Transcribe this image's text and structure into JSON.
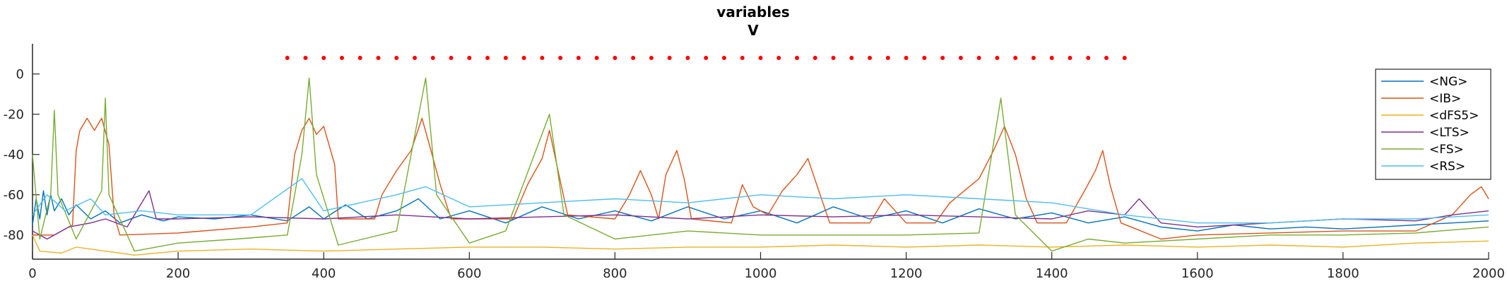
{
  "chart_data": {
    "type": "line",
    "title_lines": [
      "variables",
      "V"
    ],
    "xlim": [
      0,
      2000
    ],
    "ylim": [
      -92,
      15
    ],
    "x_ticks": [
      0,
      200,
      400,
      600,
      800,
      1000,
      1200,
      1400,
      1600,
      1800,
      2000
    ],
    "y_ticks": [
      0,
      -20,
      -40,
      -60,
      -80
    ],
    "x_tick_labels": [
      "0",
      "200",
      "400",
      "600",
      "800",
      "1000",
      "1200",
      "1400",
      "1600",
      "1800",
      "2000"
    ],
    "y_tick_labels": [
      "0",
      "-20",
      "-40",
      "-60",
      "-80"
    ],
    "legend_position": "top-right",
    "series": [
      {
        "name": "<NG>",
        "color": "#0072BD",
        "points": [
          [
            0,
            -75
          ],
          [
            5,
            -62
          ],
          [
            10,
            -72
          ],
          [
            15,
            -58
          ],
          [
            20,
            -70
          ],
          [
            25,
            -60
          ],
          [
            30,
            -68
          ],
          [
            40,
            -62
          ],
          [
            50,
            -70
          ],
          [
            60,
            -65
          ],
          [
            80,
            -72
          ],
          [
            100,
            -68
          ],
          [
            120,
            -74
          ],
          [
            150,
            -70
          ],
          [
            180,
            -73
          ],
          [
            200,
            -71
          ],
          [
            250,
            -72
          ],
          [
            300,
            -70
          ],
          [
            350,
            -73
          ],
          [
            380,
            -66
          ],
          [
            400,
            -72
          ],
          [
            430,
            -65
          ],
          [
            460,
            -72
          ],
          [
            500,
            -68
          ],
          [
            530,
            -62
          ],
          [
            560,
            -72
          ],
          [
            600,
            -68
          ],
          [
            650,
            -74
          ],
          [
            700,
            -66
          ],
          [
            750,
            -72
          ],
          [
            800,
            -68
          ],
          [
            850,
            -73
          ],
          [
            900,
            -66
          ],
          [
            950,
            -72
          ],
          [
            1000,
            -68
          ],
          [
            1050,
            -74
          ],
          [
            1100,
            -66
          ],
          [
            1150,
            -72
          ],
          [
            1200,
            -68
          ],
          [
            1250,
            -74
          ],
          [
            1300,
            -67
          ],
          [
            1350,
            -72
          ],
          [
            1400,
            -69
          ],
          [
            1450,
            -74
          ],
          [
            1500,
            -71
          ],
          [
            1550,
            -76
          ],
          [
            1600,
            -78
          ],
          [
            1650,
            -75
          ],
          [
            1700,
            -77
          ],
          [
            1750,
            -76
          ],
          [
            1800,
            -77
          ],
          [
            1850,
            -76
          ],
          [
            1900,
            -75
          ],
          [
            1950,
            -74
          ],
          [
            2000,
            -73
          ]
        ]
      },
      {
        "name": "<IB>",
        "color": "#D95319",
        "points": [
          [
            0,
            -80
          ],
          [
            30,
            -80
          ],
          [
            55,
            -75
          ],
          [
            60,
            -38
          ],
          [
            65,
            -28
          ],
          [
            75,
            -22
          ],
          [
            85,
            -28
          ],
          [
            95,
            -22
          ],
          [
            105,
            -35
          ],
          [
            112,
            -70
          ],
          [
            120,
            -80
          ],
          [
            200,
            -79
          ],
          [
            300,
            -76
          ],
          [
            350,
            -74
          ],
          [
            360,
            -40
          ],
          [
            370,
            -28
          ],
          [
            380,
            -22
          ],
          [
            390,
            -30
          ],
          [
            400,
            -26
          ],
          [
            415,
            -45
          ],
          [
            420,
            -72
          ],
          [
            470,
            -72
          ],
          [
            480,
            -60
          ],
          [
            500,
            -48
          ],
          [
            520,
            -38
          ],
          [
            535,
            -22
          ],
          [
            545,
            -35
          ],
          [
            560,
            -55
          ],
          [
            575,
            -72
          ],
          [
            660,
            -72
          ],
          [
            680,
            -55
          ],
          [
            700,
            -42
          ],
          [
            710,
            -28
          ],
          [
            720,
            -45
          ],
          [
            735,
            -70
          ],
          [
            800,
            -72
          ],
          [
            820,
            -60
          ],
          [
            835,
            -48
          ],
          [
            850,
            -60
          ],
          [
            860,
            -72
          ],
          [
            870,
            -50
          ],
          [
            885,
            -38
          ],
          [
            895,
            -52
          ],
          [
            905,
            -72
          ],
          [
            960,
            -74
          ],
          [
            975,
            -55
          ],
          [
            990,
            -66
          ],
          [
            1010,
            -70
          ],
          [
            1030,
            -58
          ],
          [
            1050,
            -50
          ],
          [
            1065,
            -42
          ],
          [
            1080,
            -58
          ],
          [
            1095,
            -74
          ],
          [
            1150,
            -74
          ],
          [
            1170,
            -62
          ],
          [
            1200,
            -74
          ],
          [
            1240,
            -74
          ],
          [
            1260,
            -64
          ],
          [
            1300,
            -52
          ],
          [
            1320,
            -38
          ],
          [
            1335,
            -26
          ],
          [
            1350,
            -40
          ],
          [
            1365,
            -62
          ],
          [
            1380,
            -74
          ],
          [
            1420,
            -74
          ],
          [
            1445,
            -58
          ],
          [
            1460,
            -48
          ],
          [
            1470,
            -38
          ],
          [
            1480,
            -55
          ],
          [
            1495,
            -74
          ],
          [
            1550,
            -82
          ],
          [
            1600,
            -80
          ],
          [
            1700,
            -79
          ],
          [
            1800,
            -78
          ],
          [
            1900,
            -78
          ],
          [
            1950,
            -70
          ],
          [
            1975,
            -60
          ],
          [
            1990,
            -56
          ],
          [
            2000,
            -62
          ]
        ]
      },
      {
        "name": "<dFS5>",
        "color": "#EDB120",
        "points": [
          [
            0,
            -80
          ],
          [
            10,
            -88
          ],
          [
            40,
            -89
          ],
          [
            60,
            -86
          ],
          [
            100,
            -88
          ],
          [
            140,
            -90
          ],
          [
            200,
            -88
          ],
          [
            300,
            -87
          ],
          [
            400,
            -88
          ],
          [
            500,
            -87
          ],
          [
            600,
            -86
          ],
          [
            700,
            -86
          ],
          [
            800,
            -87
          ],
          [
            900,
            -86
          ],
          [
            1000,
            -86
          ],
          [
            1100,
            -85
          ],
          [
            1200,
            -86
          ],
          [
            1300,
            -85
          ],
          [
            1400,
            -86
          ],
          [
            1500,
            -85
          ],
          [
            1600,
            -86
          ],
          [
            1700,
            -85
          ],
          [
            1800,
            -86
          ],
          [
            1900,
            -84
          ],
          [
            2000,
            -83
          ]
        ]
      },
      {
        "name": "<LTS>",
        "color": "#7E2F8E",
        "points": [
          [
            0,
            -78
          ],
          [
            20,
            -82
          ],
          [
            50,
            -76
          ],
          [
            80,
            -74
          ],
          [
            100,
            -72
          ],
          [
            130,
            -76
          ],
          [
            160,
            -58
          ],
          [
            170,
            -72
          ],
          [
            200,
            -72
          ],
          [
            300,
            -71
          ],
          [
            400,
            -72
          ],
          [
            500,
            -70
          ],
          [
            600,
            -72
          ],
          [
            700,
            -71
          ],
          [
            800,
            -70
          ],
          [
            900,
            -72
          ],
          [
            1000,
            -70
          ],
          [
            1100,
            -71
          ],
          [
            1200,
            -70
          ],
          [
            1300,
            -71
          ],
          [
            1400,
            -72
          ],
          [
            1450,
            -68
          ],
          [
            1500,
            -70
          ],
          [
            1520,
            -62
          ],
          [
            1550,
            -74
          ],
          [
            1600,
            -76
          ],
          [
            1700,
            -74
          ],
          [
            1800,
            -72
          ],
          [
            1900,
            -73
          ],
          [
            1950,
            -70
          ],
          [
            2000,
            -68
          ]
        ]
      },
      {
        "name": "<FS>",
        "color": "#77AC30",
        "points": [
          [
            0,
            -40
          ],
          [
            10,
            -82
          ],
          [
            25,
            -60
          ],
          [
            30,
            -18
          ],
          [
            35,
            -60
          ],
          [
            60,
            -82
          ],
          [
            95,
            -58
          ],
          [
            100,
            -12
          ],
          [
            105,
            -60
          ],
          [
            140,
            -88
          ],
          [
            200,
            -84
          ],
          [
            280,
            -82
          ],
          [
            350,
            -80
          ],
          [
            370,
            -40
          ],
          [
            380,
            -2
          ],
          [
            390,
            -50
          ],
          [
            420,
            -85
          ],
          [
            500,
            -78
          ],
          [
            540,
            -2
          ],
          [
            555,
            -60
          ],
          [
            600,
            -84
          ],
          [
            650,
            -78
          ],
          [
            710,
            -20
          ],
          [
            730,
            -70
          ],
          [
            800,
            -82
          ],
          [
            900,
            -78
          ],
          [
            1000,
            -80
          ],
          [
            1100,
            -80
          ],
          [
            1200,
            -80
          ],
          [
            1300,
            -79
          ],
          [
            1330,
            -12
          ],
          [
            1350,
            -70
          ],
          [
            1400,
            -88
          ],
          [
            1450,
            -82
          ],
          [
            1500,
            -84
          ],
          [
            1600,
            -82
          ],
          [
            1700,
            -80
          ],
          [
            1800,
            -80
          ],
          [
            1900,
            -79
          ],
          [
            2000,
            -76
          ]
        ]
      },
      {
        "name": "<RS>",
        "color": "#4DBEEE",
        "points": [
          [
            0,
            -70
          ],
          [
            20,
            -60
          ],
          [
            45,
            -68
          ],
          [
            80,
            -62
          ],
          [
            100,
            -70
          ],
          [
            150,
            -68
          ],
          [
            200,
            -70
          ],
          [
            300,
            -70
          ],
          [
            370,
            -52
          ],
          [
            400,
            -68
          ],
          [
            500,
            -60
          ],
          [
            540,
            -56
          ],
          [
            600,
            -66
          ],
          [
            700,
            -64
          ],
          [
            800,
            -62
          ],
          [
            900,
            -64
          ],
          [
            1000,
            -60
          ],
          [
            1100,
            -62
          ],
          [
            1200,
            -60
          ],
          [
            1300,
            -62
          ],
          [
            1400,
            -64
          ],
          [
            1500,
            -70
          ],
          [
            1600,
            -74
          ],
          [
            1700,
            -74
          ],
          [
            1800,
            -72
          ],
          [
            1900,
            -72
          ],
          [
            2000,
            -70
          ]
        ]
      },
      {
        "name": "",
        "color": "#FF0000",
        "style": "markers",
        "points": [
          [
            350,
            8
          ],
          [
            375,
            8
          ],
          [
            400,
            8
          ],
          [
            425,
            8
          ],
          [
            450,
            8
          ],
          [
            475,
            8
          ],
          [
            500,
            8
          ],
          [
            525,
            8
          ],
          [
            550,
            8
          ],
          [
            575,
            8
          ],
          [
            600,
            8
          ],
          [
            625,
            8
          ],
          [
            650,
            8
          ],
          [
            675,
            8
          ],
          [
            700,
            8
          ],
          [
            725,
            8
          ],
          [
            750,
            8
          ],
          [
            775,
            8
          ],
          [
            800,
            8
          ],
          [
            825,
            8
          ],
          [
            850,
            8
          ],
          [
            875,
            8
          ],
          [
            900,
            8
          ],
          [
            925,
            8
          ],
          [
            950,
            8
          ],
          [
            975,
            8
          ],
          [
            1000,
            8
          ],
          [
            1025,
            8
          ],
          [
            1050,
            8
          ],
          [
            1075,
            8
          ],
          [
            1100,
            8
          ],
          [
            1125,
            8
          ],
          [
            1150,
            8
          ],
          [
            1175,
            8
          ],
          [
            1200,
            8
          ],
          [
            1225,
            8
          ],
          [
            1250,
            8
          ],
          [
            1275,
            8
          ],
          [
            1300,
            8
          ],
          [
            1325,
            8
          ],
          [
            1350,
            8
          ],
          [
            1375,
            8
          ],
          [
            1400,
            8
          ],
          [
            1425,
            8
          ],
          [
            1450,
            8
          ],
          [
            1475,
            8
          ],
          [
            1500,
            8
          ]
        ]
      }
    ]
  }
}
